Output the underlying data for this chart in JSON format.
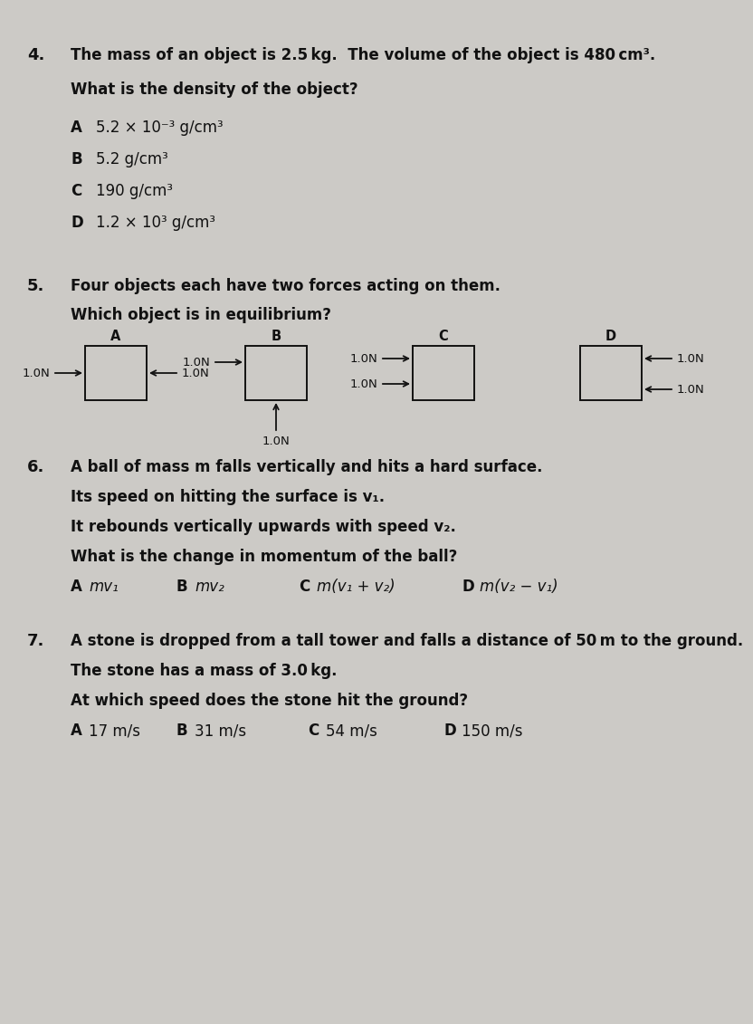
{
  "bg_color": "#cccac6",
  "text_color": "#111111",
  "q4": {
    "num": "4.",
    "stem1": "The mass of an object is 2.5 kg.  The volume of the object is 480 cm³.",
    "stem2": "What is the density of the object?",
    "opts": [
      [
        "A",
        "5.2 × 10⁻³ g/cm³"
      ],
      [
        "B",
        "5.2 g/cm³"
      ],
      [
        "C",
        "190 g/cm³"
      ],
      [
        "D",
        "1.2 × 10³ g/cm³"
      ]
    ]
  },
  "q5": {
    "num": "5.",
    "stem1": "Four objects each have two forces acting on them.",
    "stem2": "Which object is in equilibrium?"
  },
  "q6": {
    "num": "6.",
    "lines": [
      "A ball of mass m falls vertically and hits a hard surface.",
      "Its speed on hitting the surface is v₁.",
      "It rebounds vertically upwards with speed v₂.",
      "What is the change in momentum of the ball?"
    ],
    "opts": [
      [
        "A",
        "mv₁"
      ],
      [
        "B",
        "mv₂"
      ],
      [
        "C",
        "m(v₁ + v₂)"
      ],
      [
        "D",
        "m(v₂ − v₁)"
      ]
    ]
  },
  "q7": {
    "num": "7.",
    "lines": [
      "A stone is dropped from a tall tower and falls a distance of 50 m to the ground.",
      "The stone has a mass of 3.0 kg.",
      "At which speed does the stone hit the ground?"
    ],
    "opts": [
      [
        "A",
        "17 m/s"
      ],
      [
        "B",
        "31 m/s"
      ],
      [
        "C",
        "54 m/s"
      ],
      [
        "D",
        "150 m/s"
      ]
    ]
  }
}
